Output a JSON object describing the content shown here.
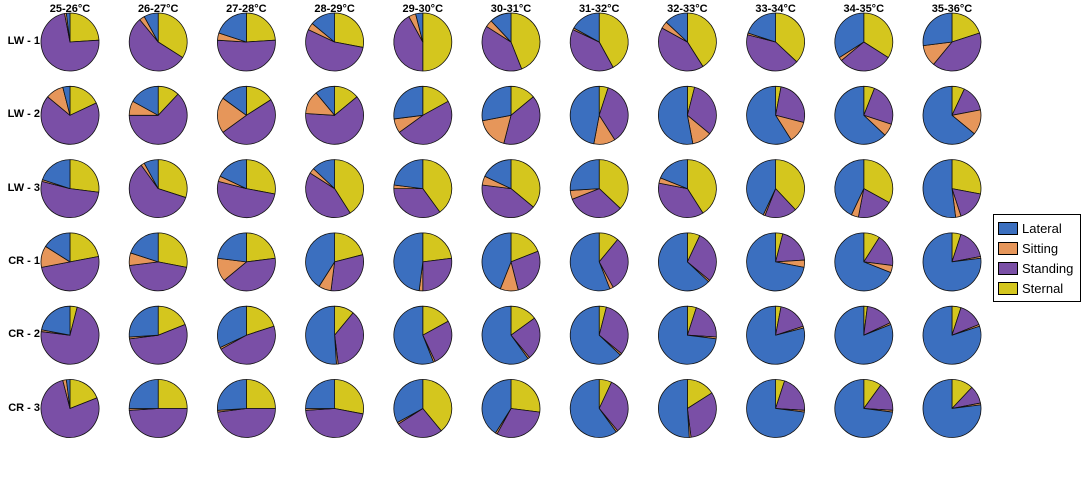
{
  "chart_data": {
    "type": "pie",
    "columns": [
      "25-26°C",
      "26-27°C",
      "27-28°C",
      "28-29°C",
      "29-30°C",
      "30-31°C",
      "31-32°C",
      "32-33°C",
      "33-34°C",
      "34-35°C",
      "35-36°C"
    ],
    "rows": [
      "LW - 1",
      "LW - 2",
      "LW - 3",
      "CR - 1",
      "CR - 2",
      "CR - 3"
    ],
    "legend": {
      "position": "right",
      "entries": [
        {
          "name": "Lateral",
          "color": "#3b6fbf"
        },
        {
          "name": "Sitting",
          "color": "#e6965a"
        },
        {
          "name": "Standing",
          "color": "#7a4fa6"
        },
        {
          "name": "Sternal",
          "color": "#d4c61e"
        }
      ]
    },
    "slice_order": [
      "Sternal",
      "Standing",
      "Sitting",
      "Lateral"
    ],
    "series": [
      {
        "row": "LW - 1",
        "values": [
          [
            0.02,
            0.01,
            0.73,
            0.24
          ],
          [
            0.08,
            0.03,
            0.55,
            0.34
          ],
          [
            0.2,
            0.04,
            0.52,
            0.24
          ],
          [
            0.14,
            0.04,
            0.54,
            0.28
          ],
          [
            0.04,
            0.04,
            0.42,
            0.5
          ],
          [
            0.12,
            0.04,
            0.4,
            0.44
          ],
          [
            0.17,
            0.01,
            0.4,
            0.42
          ],
          [
            0.13,
            0.04,
            0.42,
            0.41
          ],
          [
            0.2,
            0.01,
            0.42,
            0.37
          ],
          [
            0.34,
            0.02,
            0.3,
            0.34
          ],
          [
            0.27,
            0.12,
            0.41,
            0.2
          ]
        ]
      },
      {
        "row": "LW - 2",
        "values": [
          [
            0.04,
            0.1,
            0.68,
            0.18
          ],
          [
            0.17,
            0.08,
            0.63,
            0.12
          ],
          [
            0.15,
            0.2,
            0.49,
            0.16
          ],
          [
            0.11,
            0.13,
            0.62,
            0.14
          ],
          [
            0.27,
            0.08,
            0.48,
            0.17
          ],
          [
            0.28,
            0.18,
            0.4,
            0.14
          ],
          [
            0.47,
            0.12,
            0.36,
            0.05
          ],
          [
            0.53,
            0.11,
            0.32,
            0.04
          ],
          [
            0.59,
            0.12,
            0.26,
            0.03
          ],
          [
            0.63,
            0.07,
            0.24,
            0.06
          ],
          [
            0.64,
            0.14,
            0.15,
            0.07
          ]
        ]
      },
      {
        "row": "LW - 3",
        "values": [
          [
            0.2,
            0.01,
            0.52,
            0.27
          ],
          [
            0.08,
            0.02,
            0.6,
            0.3
          ],
          [
            0.18,
            0.03,
            0.51,
            0.28
          ],
          [
            0.13,
            0.03,
            0.43,
            0.41
          ],
          [
            0.23,
            0.02,
            0.35,
            0.4
          ],
          [
            0.18,
            0.05,
            0.41,
            0.36
          ],
          [
            0.26,
            0.05,
            0.32,
            0.37
          ],
          [
            0.19,
            0.03,
            0.37,
            0.41
          ],
          [
            0.43,
            0.01,
            0.18,
            0.38
          ],
          [
            0.43,
            0.04,
            0.2,
            0.33
          ],
          [
            0.52,
            0.03,
            0.17,
            0.28
          ]
        ]
      },
      {
        "row": "CR - 1",
        "values": [
          [
            0.16,
            0.12,
            0.5,
            0.22
          ],
          [
            0.2,
            0.07,
            0.45,
            0.28
          ],
          [
            0.23,
            0.13,
            0.41,
            0.23
          ],
          [
            0.41,
            0.07,
            0.31,
            0.21
          ],
          [
            0.48,
            0.02,
            0.27,
            0.23
          ],
          [
            0.44,
            0.1,
            0.27,
            0.19
          ],
          [
            0.56,
            0.02,
            0.31,
            0.11
          ],
          [
            0.63,
            0.01,
            0.29,
            0.07
          ],
          [
            0.72,
            0.04,
            0.2,
            0.04
          ],
          [
            0.69,
            0.04,
            0.18,
            0.09
          ],
          [
            0.77,
            0.01,
            0.17,
            0.05
          ]
        ]
      },
      {
        "row": "CR - 2",
        "values": [
          [
            0.22,
            0.01,
            0.73,
            0.04
          ],
          [
            0.26,
            0.01,
            0.54,
            0.19
          ],
          [
            0.32,
            0.01,
            0.47,
            0.2
          ],
          [
            0.51,
            0.01,
            0.37,
            0.11
          ],
          [
            0.56,
            0.01,
            0.26,
            0.17
          ],
          [
            0.6,
            0.01,
            0.24,
            0.15
          ],
          [
            0.63,
            0.01,
            0.32,
            0.04
          ],
          [
            0.73,
            0.01,
            0.21,
            0.05
          ],
          [
            0.79,
            0.01,
            0.17,
            0.03
          ],
          [
            0.81,
            0.01,
            0.16,
            0.02
          ],
          [
            0.8,
            0.01,
            0.14,
            0.05
          ]
        ]
      },
      {
        "row": "CR - 3",
        "values": [
          [
            0.02,
            0.02,
            0.77,
            0.19
          ],
          [
            0.25,
            0.01,
            0.49,
            0.25
          ],
          [
            0.26,
            0.01,
            0.48,
            0.25
          ],
          [
            0.25,
            0.01,
            0.46,
            0.28
          ],
          [
            0.33,
            0.01,
            0.27,
            0.39
          ],
          [
            0.41,
            0.01,
            0.31,
            0.27
          ],
          [
            0.6,
            0.01,
            0.32,
            0.07
          ],
          [
            0.51,
            0.01,
            0.32,
            0.16
          ],
          [
            0.73,
            0.01,
            0.21,
            0.05
          ],
          [
            0.73,
            0.01,
            0.16,
            0.1
          ],
          [
            0.77,
            0.01,
            0.1,
            0.12
          ]
        ]
      }
    ]
  }
}
